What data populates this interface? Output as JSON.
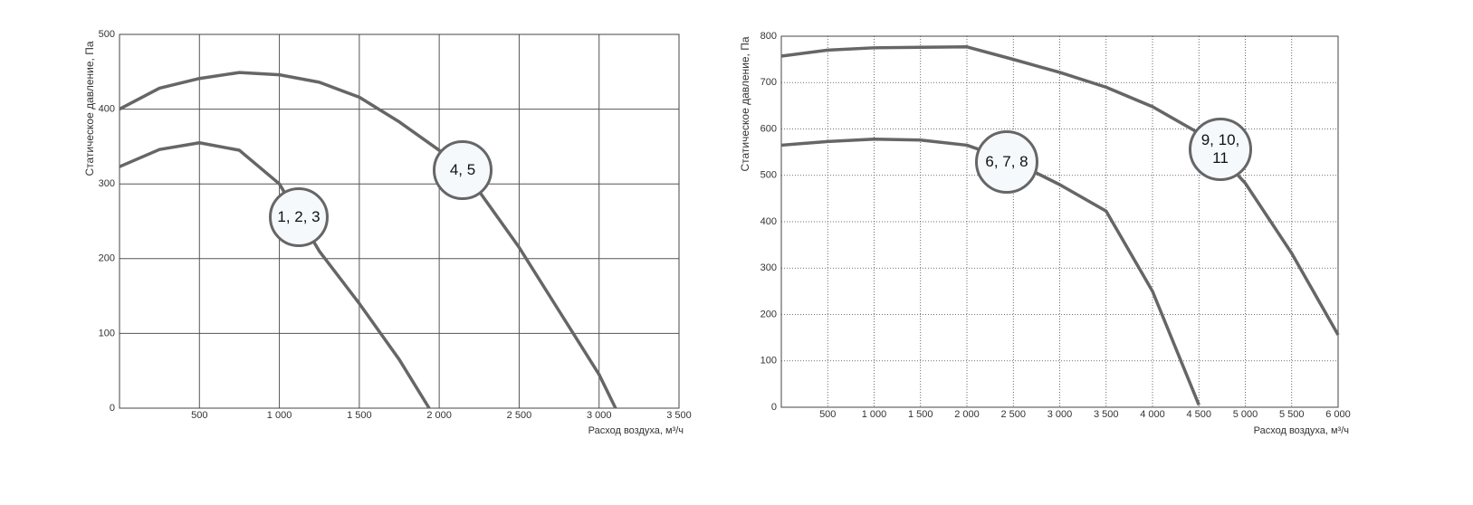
{
  "chart_data": [
    {
      "type": "line",
      "xlabel": "Расход воздуха, м³/ч",
      "ylabel": "Статическое давление, Па",
      "xlim": [
        0,
        3500
      ],
      "ylim": [
        0,
        500
      ],
      "xticks": [
        500,
        {
          "value": 1000,
          "label": "1 000"
        },
        {
          "value": 1500,
          "label": "1 500"
        },
        {
          "value": 2000,
          "label": "2 000"
        },
        {
          "value": 2500,
          "label": "2 500"
        },
        {
          "value": 3000,
          "label": "3 000"
        },
        {
          "value": 3500,
          "label": "3 500"
        }
      ],
      "yticks": [
        0,
        100,
        200,
        300,
        400,
        500
      ],
      "grid": "solid",
      "series": [
        {
          "name": "1, 2, 3",
          "color": "#666666",
          "x": [
            0,
            250,
            500,
            750,
            1000,
            1250,
            1500,
            1750,
            1937
          ],
          "values": [
            323,
            346,
            355,
            345,
            300,
            210,
            140,
            65,
            0
          ]
        },
        {
          "name": "4, 5",
          "color": "#666666",
          "x": [
            0,
            250,
            500,
            750,
            1000,
            1250,
            1500,
            1750,
            2000,
            2250,
            2500,
            2750,
            3000,
            3103
          ],
          "values": [
            400,
            428,
            441,
            449,
            446,
            436,
            416,
            383,
            345,
            290,
            215,
            130,
            45,
            0
          ]
        }
      ]
    },
    {
      "type": "line",
      "xlabel": "Расход воздуха, м³/ч",
      "ylabel": "Статическое давление, Па",
      "xlim": [
        0,
        6000
      ],
      "ylim": [
        0,
        800
      ],
      "xticks": [
        500,
        {
          "value": 1000,
          "label": "1 000"
        },
        {
          "value": 1500,
          "label": "1 500"
        },
        {
          "value": 2000,
          "label": "2 000"
        },
        {
          "value": 2500,
          "label": "2 500"
        },
        {
          "value": 3000,
          "label": "3 000"
        },
        {
          "value": 3500,
          "label": "3 500"
        },
        {
          "value": 4000,
          "label": "4 000"
        },
        {
          "value": 4500,
          "label": "4 500"
        },
        {
          "value": 5000,
          "label": "5 000"
        },
        {
          "value": 5500,
          "label": "5 500"
        },
        {
          "value": 6000,
          "label": "6 000"
        }
      ],
      "yticks": [
        0,
        100,
        200,
        300,
        400,
        500,
        600,
        700,
        800
      ],
      "grid": "dotted",
      "series": [
        {
          "name": "6, 7, 8",
          "color": "#666666",
          "x": [
            0,
            500,
            1000,
            1500,
            2000,
            2500,
            3000,
            3500,
            4000,
            4500
          ],
          "values": [
            565,
            573,
            578,
            576,
            565,
            530,
            480,
            423,
            250,
            5
          ]
        },
        {
          "name": "9, 10, 11",
          "color": "#666666",
          "x": [
            0,
            500,
            1000,
            1500,
            2000,
            2500,
            3000,
            3500,
            4000,
            4500,
            5000,
            5500,
            6000
          ],
          "values": [
            757,
            770,
            775,
            776,
            777,
            750,
            722,
            690,
            648,
            591,
            483,
            332,
            156
          ]
        }
      ]
    }
  ]
}
